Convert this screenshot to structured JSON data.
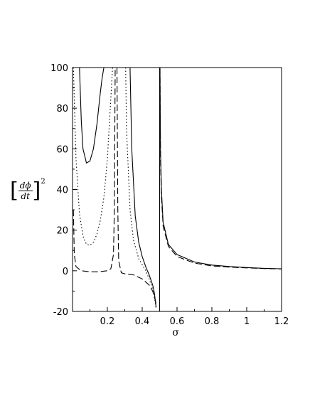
{
  "chart_data": {
    "type": "line",
    "xlabel": "σ",
    "ylabel": {
      "numerator": "dϕ",
      "denominator": "dt",
      "exponent": "2"
    },
    "xlim": [
      0,
      1.2
    ],
    "ylim": [
      -20,
      100
    ],
    "xticks": [
      0.2,
      0.4,
      0.6,
      0.8,
      1,
      1.2
    ],
    "xtick_labels": [
      "0.2",
      "0.4",
      "0.6",
      "0.8",
      "1",
      "1.2"
    ],
    "yticks": [
      -20,
      0,
      20,
      40,
      60,
      80,
      100
    ],
    "ytick_labels": [
      "-20",
      "0",
      "20",
      "40",
      "60",
      "80",
      "100"
    ],
    "grid": false,
    "legend": "none",
    "series": [
      {
        "style": "solid",
        "segments": [
          {
            "x": [
              0.04,
              0.05,
              0.06,
              0.08,
              0.1,
              0.12,
              0.14,
              0.16,
              0.17,
              0.18
            ],
            "y": [
              100,
              74,
              60,
              53,
              54,
              60,
              72,
              88,
              95,
              100
            ]
          },
          {
            "x": [
              0.33,
              0.34,
              0.36,
              0.38,
              0.4,
              0.42,
              0.44,
              0.46,
              0.47,
              0.48
            ],
            "y": [
              100,
              60,
              27,
              14,
              7,
              2,
              -2,
              -7,
              -11,
              -18
            ]
          },
          {
            "x": [
              0.502,
              0.505,
              0.51,
              0.52,
              0.55,
              0.6,
              0.7,
              0.8,
              0.9,
              1.0,
              1.1,
              1.2
            ],
            "y": [
              100,
              60,
              40,
              24,
              13,
              8,
              4.3,
              2.8,
              2.1,
              1.6,
              1.2,
              1.0
            ]
          }
        ]
      },
      {
        "style": "dotted",
        "segments": [
          {
            "x": [
              0.005,
              0.02,
              0.04,
              0.06,
              0.08,
              0.1,
              0.12,
              0.14,
              0.16,
              0.18,
              0.2,
              0.22,
              0.23
            ],
            "y": [
              100,
              55,
              28,
              17,
              13,
              12.5,
              14,
              18,
              25,
              36,
              55,
              85,
              100
            ]
          },
          {
            "x": [
              0.305,
              0.31,
              0.33,
              0.35,
              0.38,
              0.4,
              0.42,
              0.44,
              0.46,
              0.47,
              0.48
            ],
            "y": [
              100,
              70,
              30,
              15,
              6,
              3,
              0,
              -4,
              -9,
              -13,
              -19
            ]
          }
        ]
      },
      {
        "style": "dashed",
        "segments": [
          {
            "x": [
              0.005,
              0.01,
              0.02,
              0.05,
              0.1,
              0.15,
              0.2,
              0.22,
              0.235,
              0.24,
              0.245
            ],
            "y": [
              30,
              8,
              2,
              0,
              -0.5,
              -0.5,
              0,
              1,
              8,
              30,
              100
            ]
          },
          {
            "x": [
              0.255,
              0.26,
              0.265,
              0.28,
              0.3,
              0.35,
              0.4,
              0.44,
              0.46,
              0.48
            ],
            "y": [
              100,
              30,
              5,
              -1,
              -1.5,
              -2,
              -4,
              -7,
              -10,
              -16
            ]
          },
          {
            "x": [
              0.502,
              0.505,
              0.51,
              0.52,
              0.55,
              0.6,
              0.7,
              0.8,
              0.9,
              1.0,
              1.1,
              1.2
            ],
            "y": [
              100,
              55,
              37,
              22,
              12,
              7,
              3.8,
              2.4,
              1.8,
              1.4,
              1.1,
              0.9
            ]
          }
        ]
      }
    ],
    "asymptote": {
      "x": 0.5,
      "style": "solid"
    }
  }
}
